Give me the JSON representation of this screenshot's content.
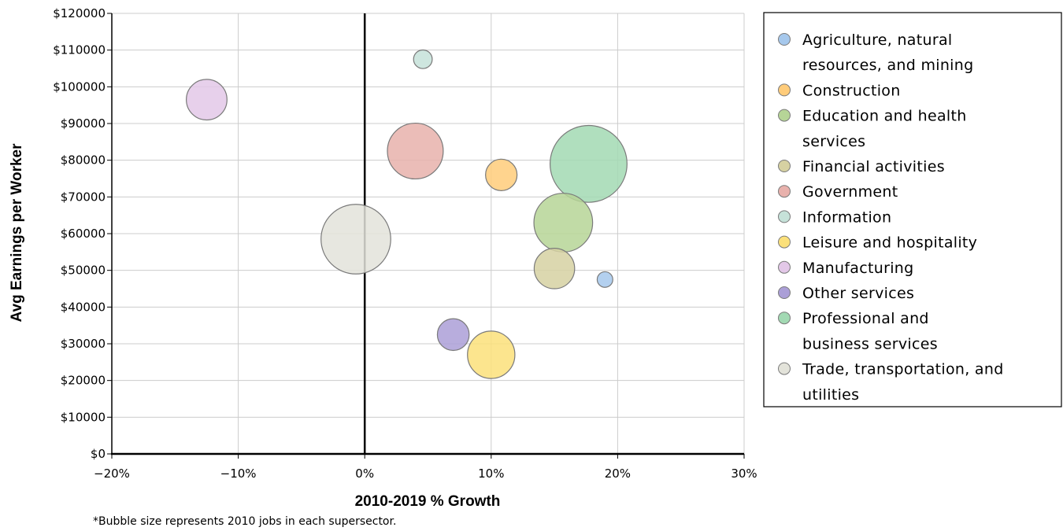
{
  "chart_data": {
    "type": "scatter",
    "subtype": "bubble",
    "xlabel": "2010-2019 % Growth",
    "ylabel": "Avg Earnings per Worker",
    "footnote": "*Bubble size represents 2010 jobs in each supersector.",
    "xlim": [
      -20,
      30
    ],
    "ylim": [
      0,
      120000
    ],
    "x_ticks": [
      {
        "value": -20,
        "label": "−20%"
      },
      {
        "value": -10,
        "label": "−10%"
      },
      {
        "value": 0,
        "label": "0%"
      },
      {
        "value": 10,
        "label": "10%"
      },
      {
        "value": 20,
        "label": "20%"
      },
      {
        "value": 30,
        "label": "30%"
      }
    ],
    "y_ticks": [
      {
        "value": 0,
        "label": "$0"
      },
      {
        "value": 10000,
        "label": "$10000"
      },
      {
        "value": 20000,
        "label": "$20000"
      },
      {
        "value": 30000,
        "label": "$30000"
      },
      {
        "value": 40000,
        "label": "$40000"
      },
      {
        "value": 50000,
        "label": "$50000"
      },
      {
        "value": 60000,
        "label": "$60000"
      },
      {
        "value": 70000,
        "label": "$70000"
      },
      {
        "value": 80000,
        "label": "$80000"
      },
      {
        "value": 90000,
        "label": "$90000"
      },
      {
        "value": 100000,
        "label": "$100000"
      },
      {
        "value": 110000,
        "label": "$110000"
      },
      {
        "value": 120000,
        "label": "$120000"
      }
    ],
    "grid": true,
    "legend_position": "right",
    "series": [
      {
        "name": "Agriculture, natural resources, and mining",
        "legend_lines": [
          "Agriculture, natural",
          "resources, and mining"
        ],
        "color": "#a6c8ec",
        "x": 19.0,
        "y": 47500,
        "size": 0.14
      },
      {
        "name": "Construction",
        "legend_lines": [
          "Construction"
        ],
        "color": "#ffcc7a",
        "x": 10.8,
        "y": 76000,
        "size": 0.57
      },
      {
        "name": "Education and health services",
        "legend_lines": [
          "Education and health",
          "services"
        ],
        "color": "#b6d597",
        "x": 15.7,
        "y": 63000,
        "size": 1.98
      },
      {
        "name": "Financial activities",
        "legend_lines": [
          "Financial activities"
        ],
        "color": "#d6d1a2",
        "x": 15.0,
        "y": 50500,
        "size": 0.94
      },
      {
        "name": "Government",
        "legend_lines": [
          "Government"
        ],
        "color": "#e8b1ac",
        "x": 4.0,
        "y": 82500,
        "size": 1.79
      },
      {
        "name": "Information",
        "legend_lines": [
          "Information"
        ],
        "color": "#c6e2d9",
        "x": 4.6,
        "y": 107500,
        "size": 0.2
      },
      {
        "name": "Leisure and hospitality",
        "legend_lines": [
          "Leisure and hospitality"
        ],
        "color": "#fbe07a",
        "x": 10.0,
        "y": 27000,
        "size": 1.29
      },
      {
        "name": "Manufacturing",
        "legend_lines": [
          "Manufacturing"
        ],
        "color": "#e3c8e8",
        "x": -12.5,
        "y": 96500,
        "size": 0.95
      },
      {
        "name": "Other services",
        "legend_lines": [
          "Other services"
        ],
        "color": "#ab9fd7",
        "x": 7.0,
        "y": 32500,
        "size": 0.58
      },
      {
        "name": "Professional and business services",
        "legend_lines": [
          "Professional and",
          "business services"
        ],
        "color": "#a2d9b3",
        "x": 17.7,
        "y": 79000,
        "size": 3.4
      },
      {
        "name": "Trade, transportation, and utilities",
        "legend_lines": [
          "Trade, transportation, and",
          "utilities"
        ],
        "color": "#e3e3da",
        "x": -0.7,
        "y": 58500,
        "size": 2.79
      }
    ]
  }
}
